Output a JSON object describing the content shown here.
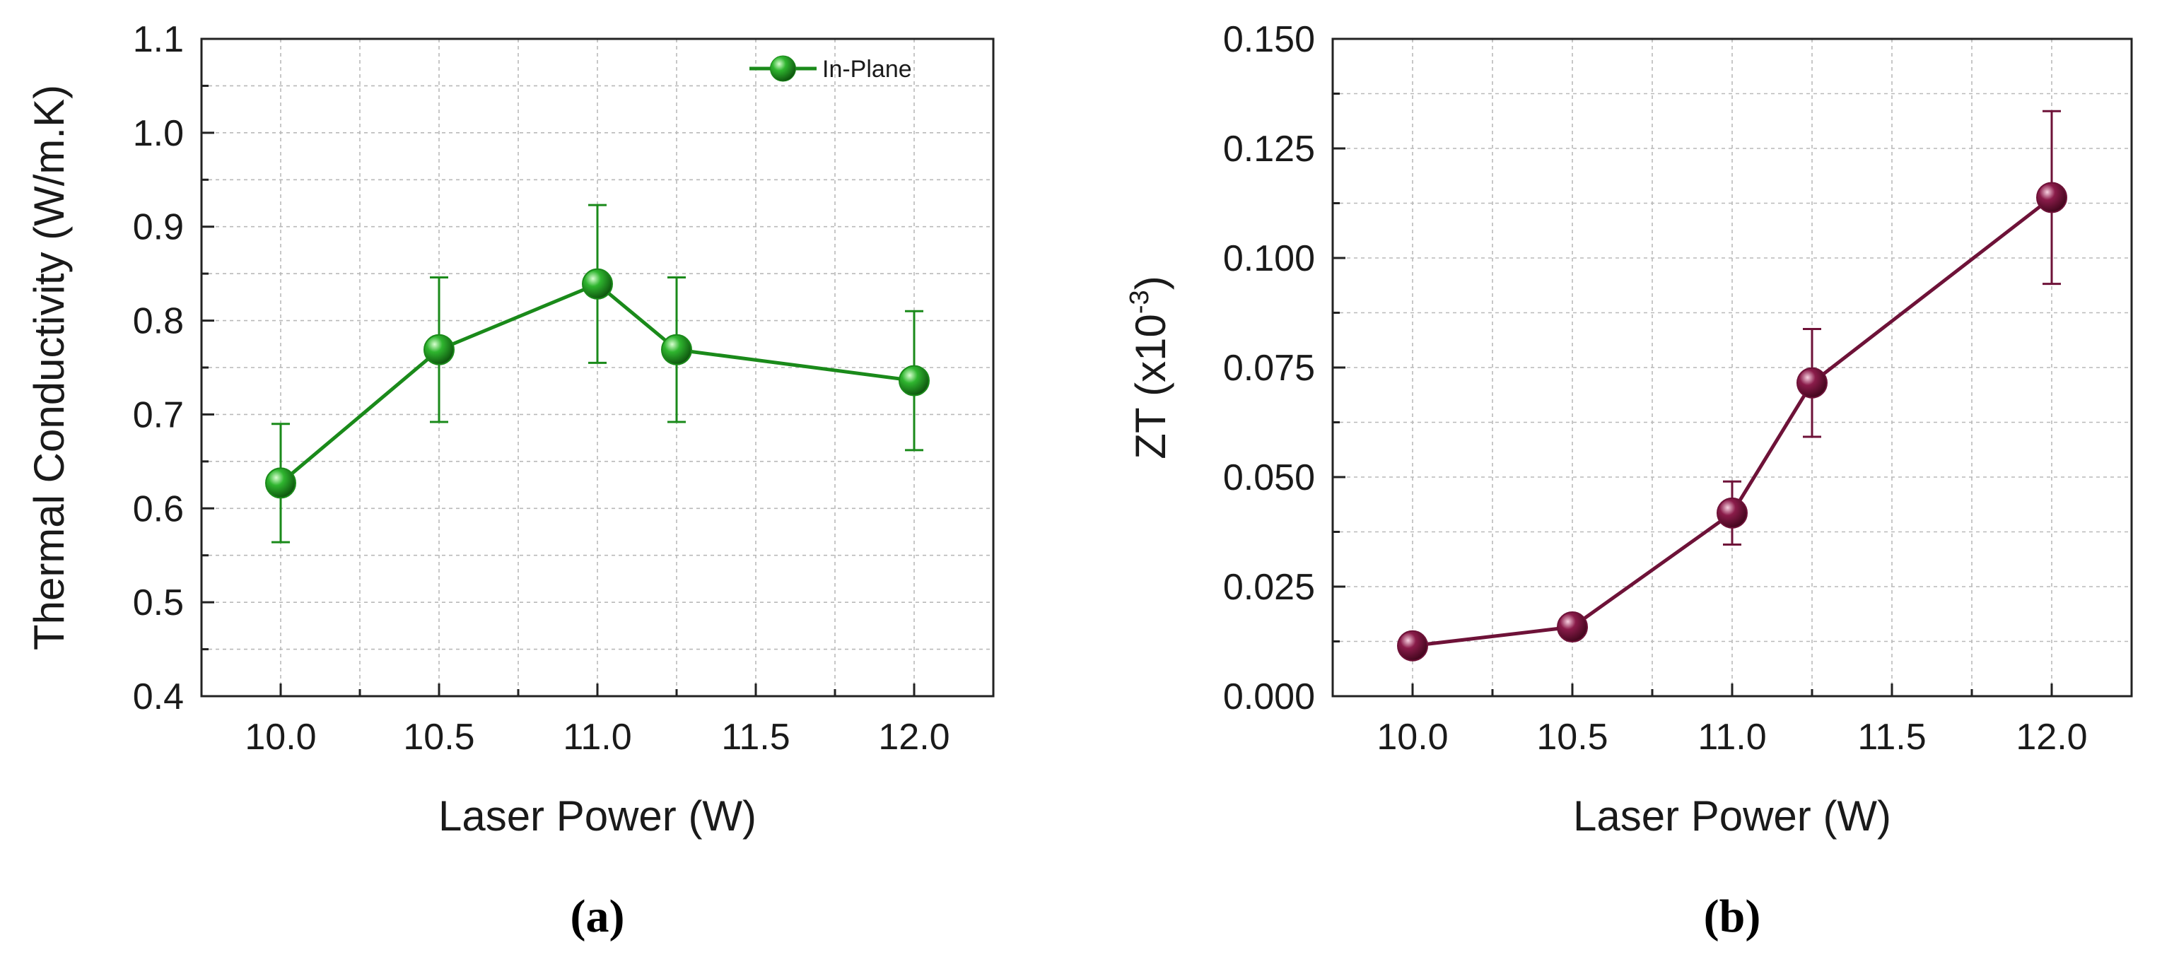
{
  "chart_data": [
    {
      "type": "line",
      "caption": "(a)",
      "xlabel": "Laser Power (W)",
      "ylabel": "Thermal Conductivity (W/m.K)",
      "xlim": [
        9.75,
        12.25
      ],
      "ylim": [
        0.4,
        1.1
      ],
      "xticks": [
        "10.0",
        "10.5",
        "11.0",
        "11.5",
        "12.0"
      ],
      "yticks": [
        "0.4",
        "0.5",
        "0.6",
        "0.7",
        "0.8",
        "0.9",
        "1.0",
        "1.1"
      ],
      "grid": true,
      "color": "#1a8a1a",
      "legend_position": "top-right",
      "series": [
        {
          "name": "In-Plane",
          "x": [
            10.0,
            10.5,
            11.0,
            11.25,
            12.0
          ],
          "y": [
            0.627,
            0.769,
            0.839,
            0.769,
            0.736
          ],
          "err": [
            0.063,
            0.077,
            0.084,
            0.077,
            0.074
          ]
        }
      ]
    },
    {
      "type": "line",
      "caption": "(b)",
      "xlabel": "Laser Power (W)",
      "ylabel_main": "ZT (x10",
      "ylabel_sup": "-3",
      "ylabel_end": ")",
      "xlim": [
        9.75,
        12.25
      ],
      "ylim": [
        0.0,
        0.15
      ],
      "xticks": [
        "10.0",
        "10.5",
        "11.0",
        "11.5",
        "12.0"
      ],
      "yticks": [
        "0.000",
        "0.025",
        "0.050",
        "0.075",
        "0.100",
        "0.125",
        "0.150"
      ],
      "grid": true,
      "color": "#6e1238",
      "series": [
        {
          "name": "ZT",
          "x": [
            10.0,
            10.5,
            11.0,
            11.25,
            12.0
          ],
          "y": [
            0.0115,
            0.0158,
            0.0418,
            0.0715,
            0.1138
          ],
          "err": [
            0.0,
            0.0,
            0.0072,
            0.0123,
            0.0197
          ]
        }
      ]
    }
  ]
}
